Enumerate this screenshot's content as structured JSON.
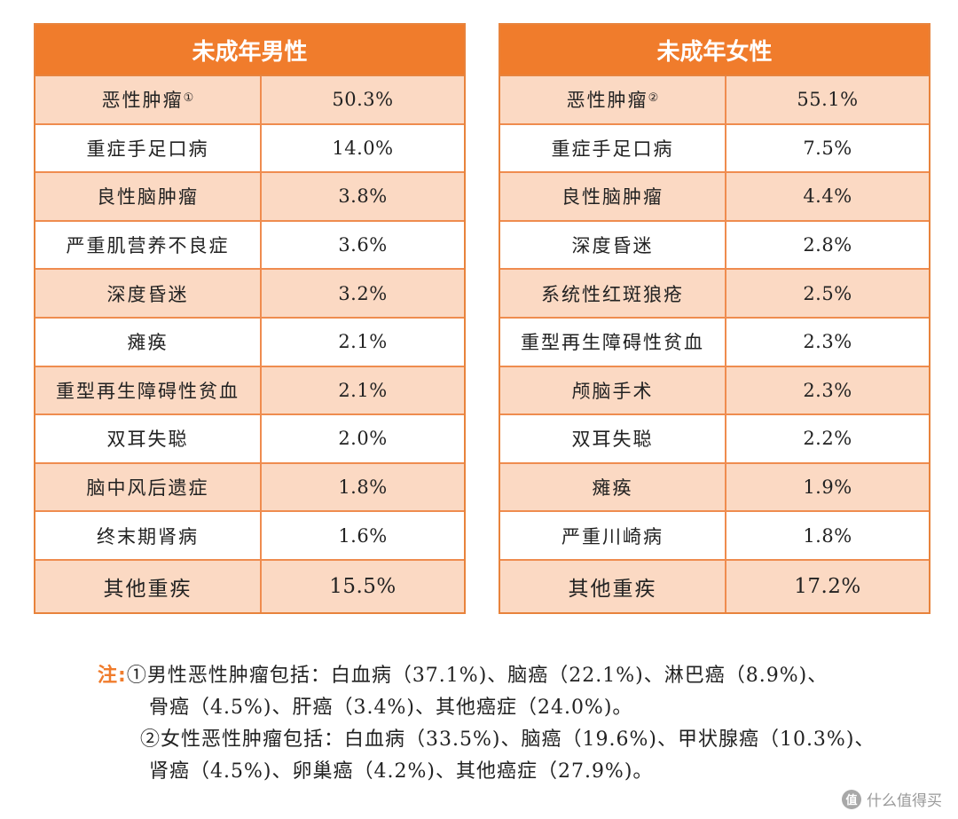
{
  "male_table": {
    "header": "未成年男性",
    "rows": [
      {
        "name": "恶性肿瘤",
        "sup": "①",
        "value": "50.3%"
      },
      {
        "name": "重症手足口病",
        "value": "14.0%"
      },
      {
        "name": "良性脑肿瘤",
        "value": "3.8%"
      },
      {
        "name": "严重肌营养不良症",
        "value": "3.6%"
      },
      {
        "name": "深度昏迷",
        "value": "3.2%"
      },
      {
        "name": "瘫痪",
        "value": "2.1%"
      },
      {
        "name": "重型再生障碍性贫血",
        "value": "2.1%"
      },
      {
        "name": "双耳失聪",
        "value": "2.0%"
      },
      {
        "name": "脑中风后遗症",
        "value": "1.8%"
      },
      {
        "name": "终末期肾病",
        "value": "1.6%"
      },
      {
        "name": "其他重疾",
        "value": "15.5%"
      }
    ]
  },
  "female_table": {
    "header": "未成年女性",
    "rows": [
      {
        "name": "恶性肿瘤",
        "sup": "②",
        "value": "55.1%"
      },
      {
        "name": "重症手足口病",
        "value": "7.5%"
      },
      {
        "name": "良性脑肿瘤",
        "value": "4.4%"
      },
      {
        "name": "深度昏迷",
        "value": "2.8%"
      },
      {
        "name": "系统性红斑狼疮",
        "value": "2.5%"
      },
      {
        "name": "重型再生障碍性贫血",
        "value": "2.3%"
      },
      {
        "name": "颅脑手术",
        "value": "2.3%"
      },
      {
        "name": "双耳失聪",
        "value": "2.2%"
      },
      {
        "name": "瘫痪",
        "value": "1.9%"
      },
      {
        "name": "严重川崎病",
        "value": "1.8%"
      },
      {
        "name": "其他重疾",
        "value": "17.2%"
      }
    ]
  },
  "notes": {
    "label": "注:",
    "line1": "①男性恶性肿瘤包括：白血病（37.1%)、脑癌（22.1%)、淋巴癌（8.9%)、",
    "line2": "骨癌（4.5%)、肝癌（3.4%)、其他癌症（24.0%)。",
    "line3": "②女性恶性肿瘤包括：白血病（33.5%)、脑癌（19.6%)、甲状腺癌（10.3%)、",
    "line4": "肾癌（4.5%)、卵巢癌（4.2%)、其他癌症（27.9%)。"
  },
  "watermark": {
    "logo": "值",
    "text": "什么值得买"
  },
  "colors": {
    "header_orange": "#f07c2c",
    "row_peach": "#fbd9c3",
    "border_orange": "#ef8c4f"
  }
}
